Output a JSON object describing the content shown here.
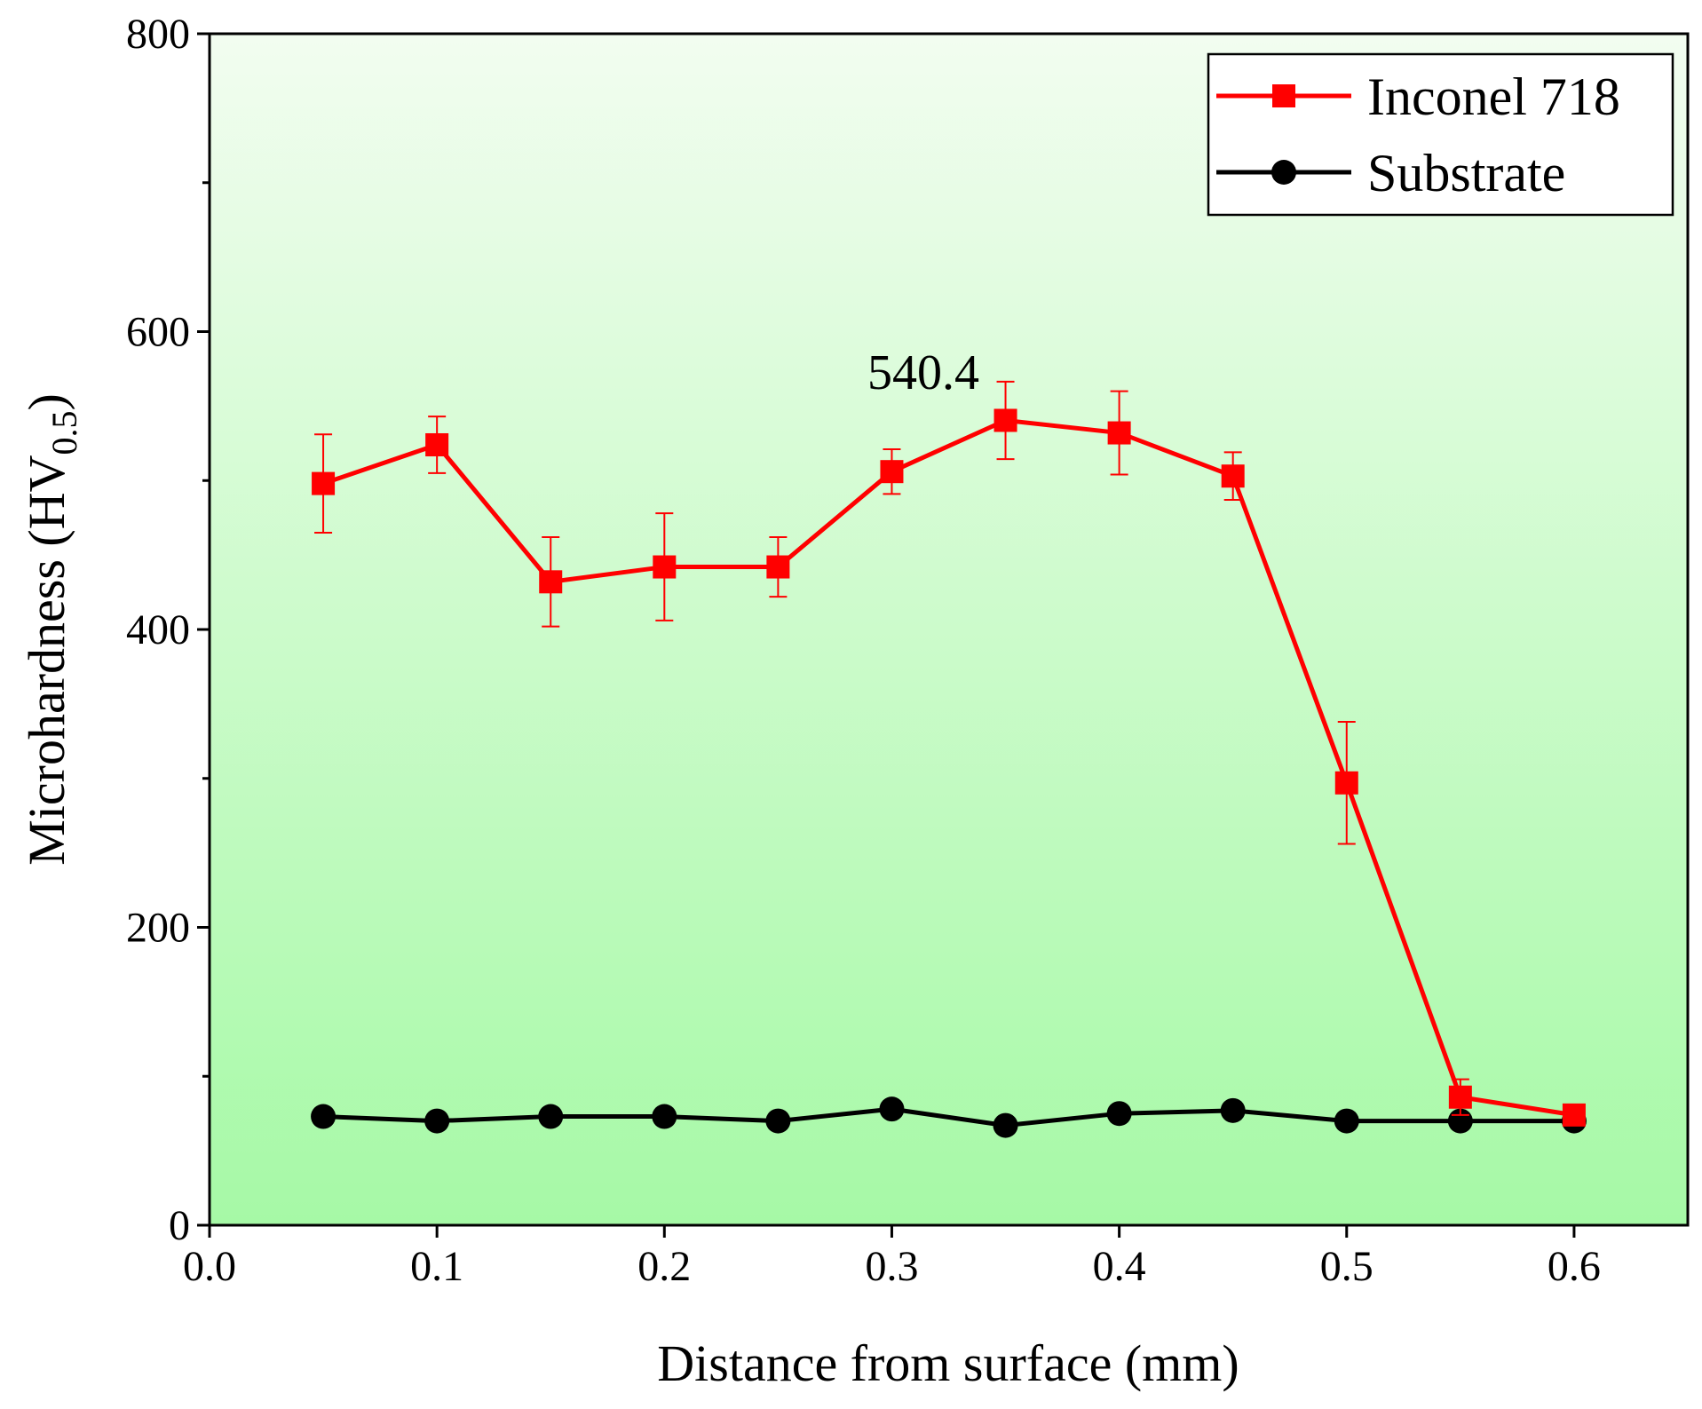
{
  "chart_data": {
    "type": "line",
    "title": "",
    "xlabel": "Distance from surface (mm)",
    "ylabel": {
      "main": "Microhardness (HV",
      "sub": "0.5",
      "close": ")"
    },
    "xlim": [
      0.0,
      0.65
    ],
    "ylim": [
      0,
      800
    ],
    "xticks": [
      0.0,
      0.1,
      0.2,
      0.3,
      0.4,
      0.5,
      0.6
    ],
    "xtick_labels": [
      "0.0",
      "0.1",
      "0.2",
      "0.3",
      "0.4",
      "0.5",
      "0.6"
    ],
    "yticks": [
      0,
      200,
      400,
      600,
      800
    ],
    "ytick_labels": [
      "0",
      "200",
      "400",
      "600",
      "800"
    ],
    "y_minor_ticks": [
      100,
      300,
      500,
      700
    ],
    "grid": false,
    "background": {
      "top": "#f2fdf0",
      "bottom": "#a6f9a6"
    },
    "legend": {
      "position": "top-right"
    },
    "series": [
      {
        "name": "Inconel 718",
        "color": "#ff0000",
        "marker": "square",
        "x": [
          0.05,
          0.1,
          0.15,
          0.2,
          0.25,
          0.3,
          0.35,
          0.4,
          0.45,
          0.5,
          0.55,
          0.6
        ],
        "y": [
          498,
          524,
          432,
          442,
          442,
          506,
          540.4,
          532,
          503,
          297,
          86,
          74
        ],
        "err": [
          33,
          19,
          30,
          36,
          20,
          15,
          26,
          28,
          16,
          41,
          12,
          5
        ]
      },
      {
        "name": "Substrate",
        "color": "#000000",
        "marker": "circle",
        "x": [
          0.05,
          0.1,
          0.15,
          0.2,
          0.25,
          0.3,
          0.35,
          0.4,
          0.45,
          0.5,
          0.55,
          0.6
        ],
        "y": [
          73,
          70,
          73,
          73,
          70,
          78,
          67,
          75,
          77,
          70,
          70,
          70
        ]
      }
    ],
    "annotations": [
      {
        "text": "540.4",
        "x": 0.35,
        "y": 540.4
      }
    ]
  }
}
